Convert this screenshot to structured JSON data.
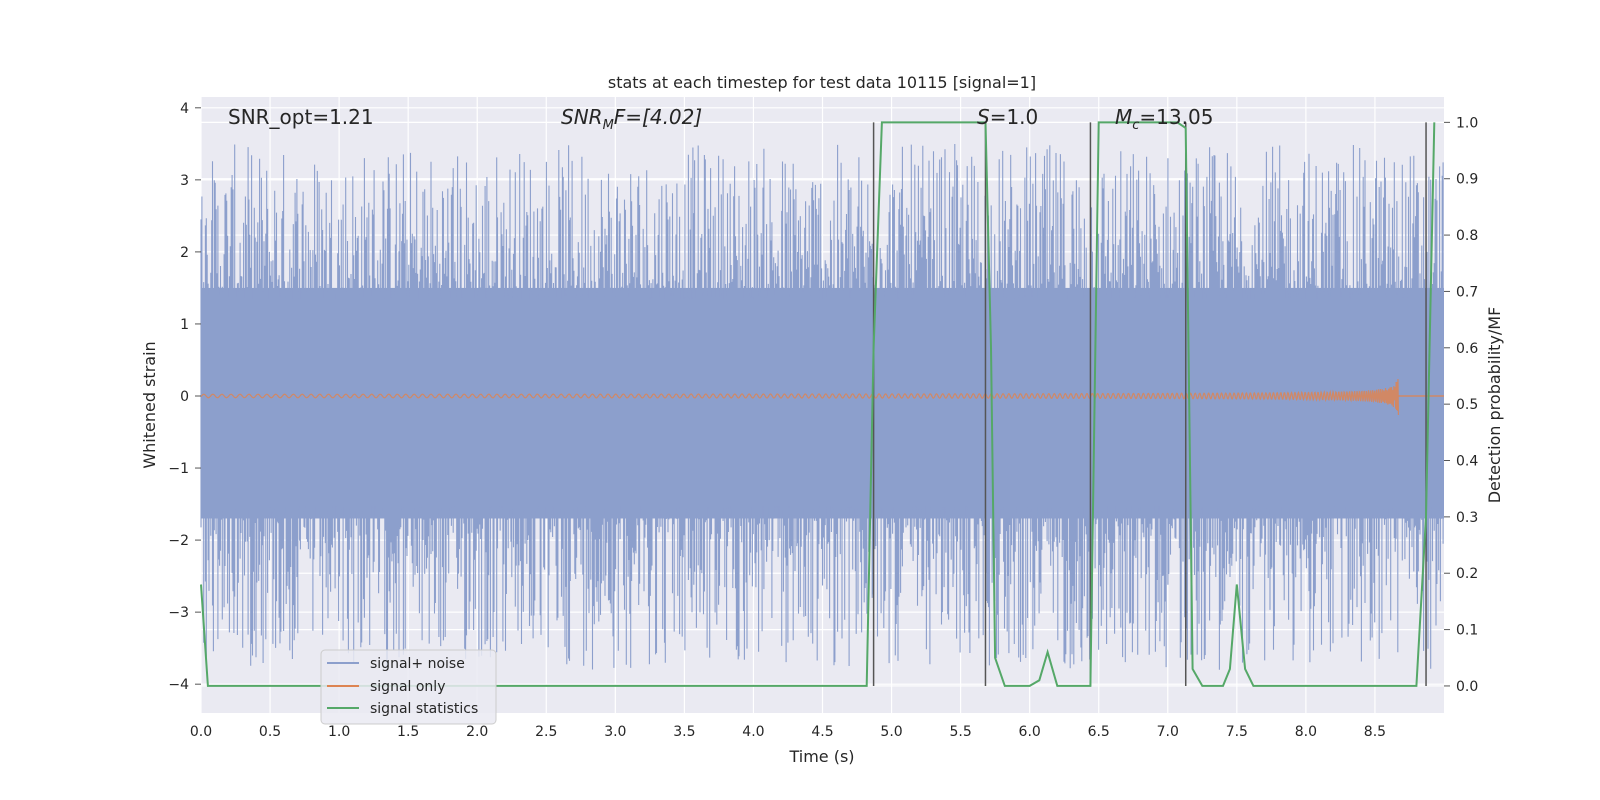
{
  "chart_data": {
    "type": "line",
    "title": "stats at each timestep for test data 10115 [signal=1]",
    "xlabel": "Time (s)",
    "ylabel": "Whitened strain",
    "y2label": "Detection probability/MF",
    "xlim": [
      0.0,
      9.0
    ],
    "ylim": [
      -4.4,
      4.15
    ],
    "y2lim": [
      -0.048,
      1.045
    ],
    "xticks": [
      "0.0",
      "0.5",
      "1.0",
      "1.5",
      "2.0",
      "2.5",
      "3.0",
      "3.5",
      "4.0",
      "4.5",
      "5.0",
      "5.5",
      "6.0",
      "6.5",
      "7.0",
      "7.5",
      "8.0",
      "8.5"
    ],
    "yticks": [
      "4",
      "3",
      "2",
      "1",
      "0",
      "−1",
      "−2",
      "−3",
      "−4"
    ],
    "y2ticks": [
      "1.0",
      "0.9",
      "0.8",
      "0.7",
      "0.6",
      "0.5",
      "0.4",
      "0.3",
      "0.2",
      "0.1",
      "0.0"
    ],
    "annotations": {
      "snr_opt": "SNR_opt=1.21",
      "snr_mf_sym": "SNR",
      "snr_mf_sub": "M",
      "snr_mf_rest": "F=[4.02]",
      "s_sym": "S",
      "s_rest": "=1.0",
      "mc_sym": "M",
      "mc_sub": "c",
      "mc_rest": "=13.05"
    },
    "legend": {
      "placement": "lower-left",
      "entries": [
        {
          "label": "signal+ noise",
          "color": "#8c9fcc"
        },
        {
          "label": "signal only",
          "color": "#dd8452"
        },
        {
          "label": "signal statistics",
          "color": "#55a868"
        }
      ]
    },
    "grid": true,
    "series": [
      {
        "name": "signal+ noise",
        "kind": "noise",
        "color": "#8c9fcc",
        "x_range": [
          0.0,
          9.0
        ],
        "core_amplitude": [
          -1.7,
          1.5
        ],
        "peak_amplitude": [
          -3.8,
          3.5
        ]
      },
      {
        "name": "signal only",
        "kind": "chirp",
        "color": "#dd8452",
        "x_range": [
          0.0,
          8.67
        ],
        "peak_amplitude": 0.25
      },
      {
        "name": "signal statistics",
        "kind": "probability",
        "axis": "right",
        "color": "#55a868",
        "x": [
          0.0,
          0.05,
          0.1,
          0.5,
          1.0,
          2.0,
          3.0,
          4.0,
          4.5,
          4.82,
          4.87,
          4.93,
          5.0,
          5.5,
          5.68,
          5.72,
          5.75,
          5.82,
          5.9,
          6.0,
          6.07,
          6.13,
          6.2,
          6.3,
          6.4,
          6.44,
          6.5,
          6.55,
          6.6,
          7.0,
          7.07,
          7.13,
          7.18,
          7.25,
          7.3,
          7.4,
          7.45,
          7.5,
          7.56,
          7.62,
          7.7,
          8.0,
          8.5,
          8.8,
          8.87,
          8.93
        ],
        "values": [
          0.18,
          0.0,
          0.0,
          0.0,
          0.0,
          0.0,
          0.0,
          0.0,
          0.0,
          0.0,
          0.6,
          1.0,
          1.0,
          1.0,
          1.0,
          0.6,
          0.05,
          0.0,
          0.0,
          0.0,
          0.01,
          0.06,
          0.0,
          0.0,
          0.0,
          0.0,
          1.0,
          1.0,
          1.0,
          1.0,
          1.0,
          0.99,
          0.03,
          0.0,
          0.0,
          0.0,
          0.03,
          0.18,
          0.03,
          0.0,
          0.0,
          0.0,
          0.0,
          0.0,
          0.3,
          1.0
        ]
      }
    ],
    "vertical_markers": [
      4.87,
      5.68,
      6.44,
      7.13,
      8.87
    ]
  }
}
